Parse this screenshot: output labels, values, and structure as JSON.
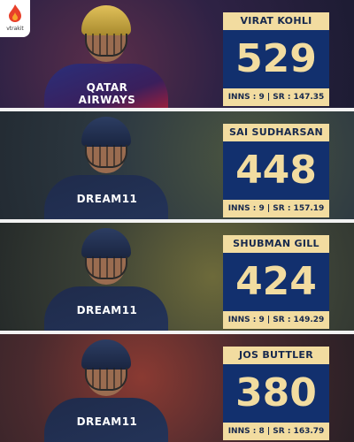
{
  "brand": {
    "name": "vtrakit",
    "accent": "#e8402a"
  },
  "colors": {
    "card_dark": "#12306e",
    "card_light": "#f2dca0"
  },
  "players": [
    {
      "name": "VIRAT KOHLI",
      "runs": "529",
      "stats": "INNS : 9 | SR : 147.35",
      "jersey": "QATAR AIRWAYS"
    },
    {
      "name": "SAI SUDHARSAN",
      "runs": "448",
      "stats": "INNS : 9 | SR : 157.19",
      "jersey": "DREAM11"
    },
    {
      "name": "SHUBMAN GILL",
      "runs": "424",
      "stats": "INNS : 9 | SR : 149.29",
      "jersey": "DREAM11"
    },
    {
      "name": "JOS BUTTLER",
      "runs": "380",
      "stats": "INNS : 8 | SR : 163.79",
      "jersey": "DREAM11"
    }
  ]
}
